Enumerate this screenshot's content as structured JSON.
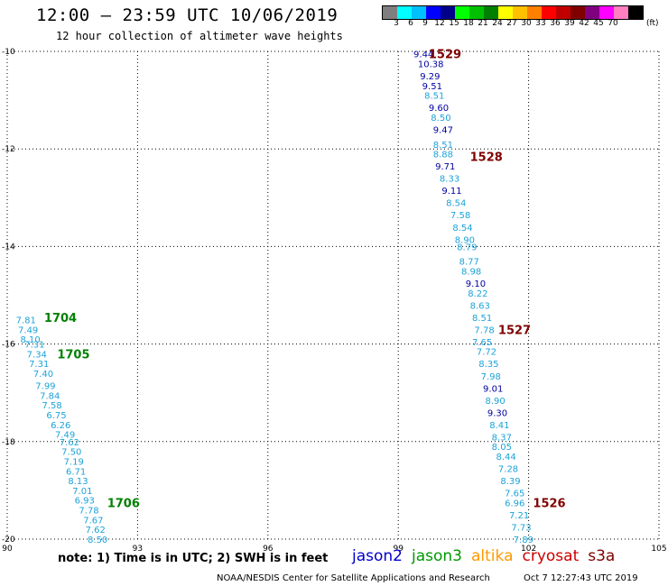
{
  "header": {
    "title": "12:00 – 23:59 UTC 10/06/2019",
    "subtitle": "12 hour collection of altimeter wave heights"
  },
  "colorbar": {
    "colors": [
      "#7f7f7f",
      "#00ffff",
      "#00bfff",
      "#0000ff",
      "#00008b",
      "#00ff00",
      "#00c000",
      "#008000",
      "#ffff00",
      "#ffc000",
      "#ff8000",
      "#ff0000",
      "#c00000",
      "#800000",
      "#800080",
      "#ff00ff",
      "#ff80c0",
      "#000000"
    ],
    "labels": [
      "3",
      "6",
      "9",
      "12",
      "15",
      "18",
      "21",
      "24",
      "27",
      "30",
      "33",
      "36",
      "39",
      "42",
      "45",
      "70"
    ],
    "unit": "(ft)"
  },
  "chart_data": {
    "type": "scatter",
    "xlim": [
      90,
      105
    ],
    "ylim": [
      -20,
      -10
    ],
    "x_ticks": [
      "90",
      "93",
      "96",
      "99",
      "102",
      "105"
    ],
    "y_ticks": [
      "-10",
      "-12",
      "-14",
      "-16",
      "-18",
      "-20"
    ],
    "grid": true,
    "colors": {
      "light": "#1ca3d8",
      "dark": "#0000a0",
      "pass_dark": "#800000",
      "pass_green": "#008000"
    },
    "tracks": [
      {
        "name": "east",
        "points": [
          {
            "x": 99.35,
            "y": -10.05,
            "v": "9.44",
            "c": "dark"
          },
          {
            "x": 99.45,
            "y": -10.25,
            "v": "10.38",
            "c": "dark"
          },
          {
            "x": 99.5,
            "y": -10.5,
            "v": "9.29",
            "c": "dark"
          },
          {
            "x": 99.55,
            "y": -10.7,
            "v": "9.51",
            "c": "dark"
          },
          {
            "x": 99.6,
            "y": -10.9,
            "v": "8.51",
            "c": "light"
          },
          {
            "x": 99.7,
            "y": -11.15,
            "v": "9.60",
            "c": "dark"
          },
          {
            "x": 99.75,
            "y": -11.35,
            "v": "8.50",
            "c": "light"
          },
          {
            "x": 99.8,
            "y": -11.6,
            "v": "9.47",
            "c": "dark"
          },
          {
            "x": 99.8,
            "y": -11.9,
            "v": "8.51",
            "c": "light"
          },
          {
            "x": 99.8,
            "y": -12.1,
            "v": "8.88",
            "c": "light"
          },
          {
            "x": 99.85,
            "y": -12.35,
            "v": "9.71",
            "c": "dark"
          },
          {
            "x": 99.95,
            "y": -12.6,
            "v": "8.33",
            "c": "light"
          },
          {
            "x": 100.0,
            "y": -12.85,
            "v": "9.11",
            "c": "dark"
          },
          {
            "x": 100.1,
            "y": -13.1,
            "v": "8.54",
            "c": "light"
          },
          {
            "x": 100.2,
            "y": -13.35,
            "v": "7.58",
            "c": "light"
          },
          {
            "x": 100.25,
            "y": -13.6,
            "v": "8.54",
            "c": "light"
          },
          {
            "x": 100.3,
            "y": -13.85,
            "v": "8.90",
            "c": "light"
          },
          {
            "x": 100.35,
            "y": -14.0,
            "v": "8.79",
            "c": "light"
          },
          {
            "x": 100.4,
            "y": -14.3,
            "v": "8.77",
            "c": "light"
          },
          {
            "x": 100.45,
            "y": -14.5,
            "v": "8.98",
            "c": "light"
          },
          {
            "x": 100.55,
            "y": -14.75,
            "v": "9.10",
            "c": "dark"
          },
          {
            "x": 100.6,
            "y": -14.95,
            "v": "8.22",
            "c": "light"
          },
          {
            "x": 100.65,
            "y": -15.2,
            "v": "8.63",
            "c": "light"
          },
          {
            "x": 100.7,
            "y": -15.45,
            "v": "8.51",
            "c": "light"
          },
          {
            "x": 100.75,
            "y": -15.7,
            "v": "7.78",
            "c": "light"
          },
          {
            "x": 100.7,
            "y": -15.95,
            "v": "7.65",
            "c": "light"
          },
          {
            "x": 100.8,
            "y": -16.15,
            "v": "7.72",
            "c": "light"
          },
          {
            "x": 100.85,
            "y": -16.4,
            "v": "8.35",
            "c": "light"
          },
          {
            "x": 100.9,
            "y": -16.65,
            "v": "7.98",
            "c": "light"
          },
          {
            "x": 100.95,
            "y": -16.9,
            "v": "9.01",
            "c": "dark"
          },
          {
            "x": 101.0,
            "y": -17.15,
            "v": "8.90",
            "c": "light"
          },
          {
            "x": 101.05,
            "y": -17.4,
            "v": "9.30",
            "c": "dark"
          },
          {
            "x": 101.1,
            "y": -17.65,
            "v": "8.41",
            "c": "light"
          },
          {
            "x": 101.15,
            "y": -17.9,
            "v": "8.37",
            "c": "light"
          },
          {
            "x": 101.15,
            "y": -18.1,
            "v": "8.05",
            "c": "light"
          },
          {
            "x": 101.25,
            "y": -18.3,
            "v": "8.44",
            "c": "light"
          },
          {
            "x": 101.3,
            "y": -18.55,
            "v": "7.28",
            "c": "light"
          },
          {
            "x": 101.35,
            "y": -18.8,
            "v": "8.39",
            "c": "light"
          },
          {
            "x": 101.45,
            "y": -19.05,
            "v": "7.65",
            "c": "light"
          },
          {
            "x": 101.45,
            "y": -19.25,
            "v": "6.96",
            "c": "light"
          },
          {
            "x": 101.55,
            "y": -19.5,
            "v": "7.21",
            "c": "light"
          },
          {
            "x": 101.6,
            "y": -19.75,
            "v": "7.73",
            "c": "light"
          },
          {
            "x": 101.65,
            "y": -20.0,
            "v": "7.89",
            "c": "light"
          }
        ]
      },
      {
        "name": "west",
        "points": [
          {
            "x": 90.2,
            "y": -15.5,
            "v": "7.81",
            "c": "light"
          },
          {
            "x": 90.25,
            "y": -15.7,
            "v": "7.49",
            "c": "light"
          },
          {
            "x": 90.3,
            "y": -15.9,
            "v": "8.10",
            "c": "light"
          },
          {
            "x": 90.4,
            "y": -16.0,
            "v": "7.31",
            "c": "light"
          },
          {
            "x": 90.45,
            "y": -16.2,
            "v": "7.34",
            "c": "light"
          },
          {
            "x": 90.5,
            "y": -16.4,
            "v": "7.31",
            "c": "light"
          },
          {
            "x": 90.6,
            "y": -16.6,
            "v": "7.40",
            "c": "light"
          },
          {
            "x": 90.65,
            "y": -16.85,
            "v": "7.99",
            "c": "light"
          },
          {
            "x": 90.75,
            "y": -17.05,
            "v": "7.84",
            "c": "light"
          },
          {
            "x": 90.8,
            "y": -17.25,
            "v": "7.58",
            "c": "light"
          },
          {
            "x": 90.9,
            "y": -17.45,
            "v": "6.75",
            "c": "light"
          },
          {
            "x": 91.0,
            "y": -17.65,
            "v": "6.26",
            "c": "light"
          },
          {
            "x": 91.1,
            "y": -17.85,
            "v": "7.49",
            "c": "light"
          },
          {
            "x": 91.2,
            "y": -18.0,
            "v": "7.62",
            "c": "light"
          },
          {
            "x": 91.25,
            "y": -18.2,
            "v": "7.50",
            "c": "light"
          },
          {
            "x": 91.3,
            "y": -18.4,
            "v": "7.19",
            "c": "light"
          },
          {
            "x": 91.35,
            "y": -18.6,
            "v": "6.71",
            "c": "light"
          },
          {
            "x": 91.4,
            "y": -18.8,
            "v": "8.13",
            "c": "light"
          },
          {
            "x": 91.5,
            "y": -19.0,
            "v": "7.01",
            "c": "light"
          },
          {
            "x": 91.55,
            "y": -19.2,
            "v": "6.93",
            "c": "light"
          },
          {
            "x": 91.65,
            "y": -19.4,
            "v": "7.78",
            "c": "light"
          },
          {
            "x": 91.75,
            "y": -19.6,
            "v": "7.67",
            "c": "light"
          },
          {
            "x": 91.8,
            "y": -19.8,
            "v": "7.62",
            "c": "light"
          },
          {
            "x": 91.85,
            "y": -20.0,
            "v": "8.50",
            "c": "light"
          }
        ]
      }
    ],
    "pass_labels": [
      {
        "x": 99.7,
        "y": -10.05,
        "text": "1529",
        "c": "pass_dark"
      },
      {
        "x": 100.65,
        "y": -12.15,
        "text": "1528",
        "c": "pass_dark"
      },
      {
        "x": 101.3,
        "y": -15.7,
        "text": "1527",
        "c": "pass_dark"
      },
      {
        "x": 102.1,
        "y": -19.25,
        "text": "1526",
        "c": "pass_dark"
      },
      {
        "x": 90.85,
        "y": -15.45,
        "text": "1704",
        "c": "pass_green"
      },
      {
        "x": 91.15,
        "y": -16.2,
        "text": "1705",
        "c": "pass_green"
      },
      {
        "x": 92.3,
        "y": -19.25,
        "text": "1706",
        "c": "pass_green"
      }
    ]
  },
  "footer": {
    "note": "note: 1) Time is in UTC; 2) SWH is in feet",
    "legend": [
      {
        "label": "jason2",
        "color": "#0000cc"
      },
      {
        "label": "jason3",
        "color": "#009900"
      },
      {
        "label": "altika",
        "color": "#ff9900"
      },
      {
        "label": "cryosat",
        "color": "#cc0000"
      },
      {
        "label": "s3a",
        "color": "#800000"
      }
    ],
    "credit": "NOAA/NESDIS Center for Satellite Applications and Research",
    "timestamp": "Oct  7 12:27:43 UTC 2019"
  }
}
